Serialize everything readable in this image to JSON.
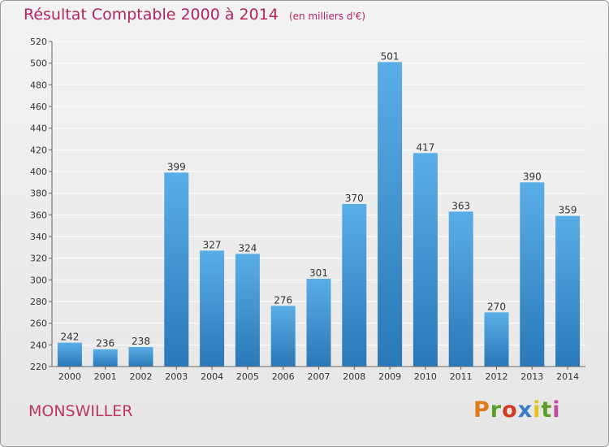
{
  "title": "Résultat Comptable 2000 à 2014",
  "unit_label": "(en milliers d'€)",
  "location": "MONSWILLER",
  "brand": "Proxiti",
  "colors": {
    "title": "#b5245f",
    "bar_top": "#5aaee6",
    "bar_bottom": "#2a78b8",
    "grid": "#ffffff",
    "brand_letters": [
      "#e07a1e",
      "#5b9f2a",
      "#d13b23",
      "#3a7bc8",
      "#e6c31a",
      "#5b9f2a",
      "#c24aa0"
    ]
  },
  "chart_data": {
    "type": "bar",
    "categories": [
      "2000",
      "2001",
      "2002",
      "2003",
      "2004",
      "2005",
      "2006",
      "2007",
      "2008",
      "2009",
      "2010",
      "2011",
      "2012",
      "2013",
      "2014"
    ],
    "values": [
      242,
      236,
      238,
      399,
      327,
      324,
      276,
      301,
      370,
      501,
      417,
      363,
      270,
      390,
      359
    ],
    "ylim": [
      220,
      520
    ],
    "yticks": [
      220,
      240,
      260,
      280,
      300,
      320,
      340,
      360,
      380,
      400,
      420,
      440,
      460,
      480,
      500,
      520
    ],
    "grid": true,
    "data_labels": true
  }
}
